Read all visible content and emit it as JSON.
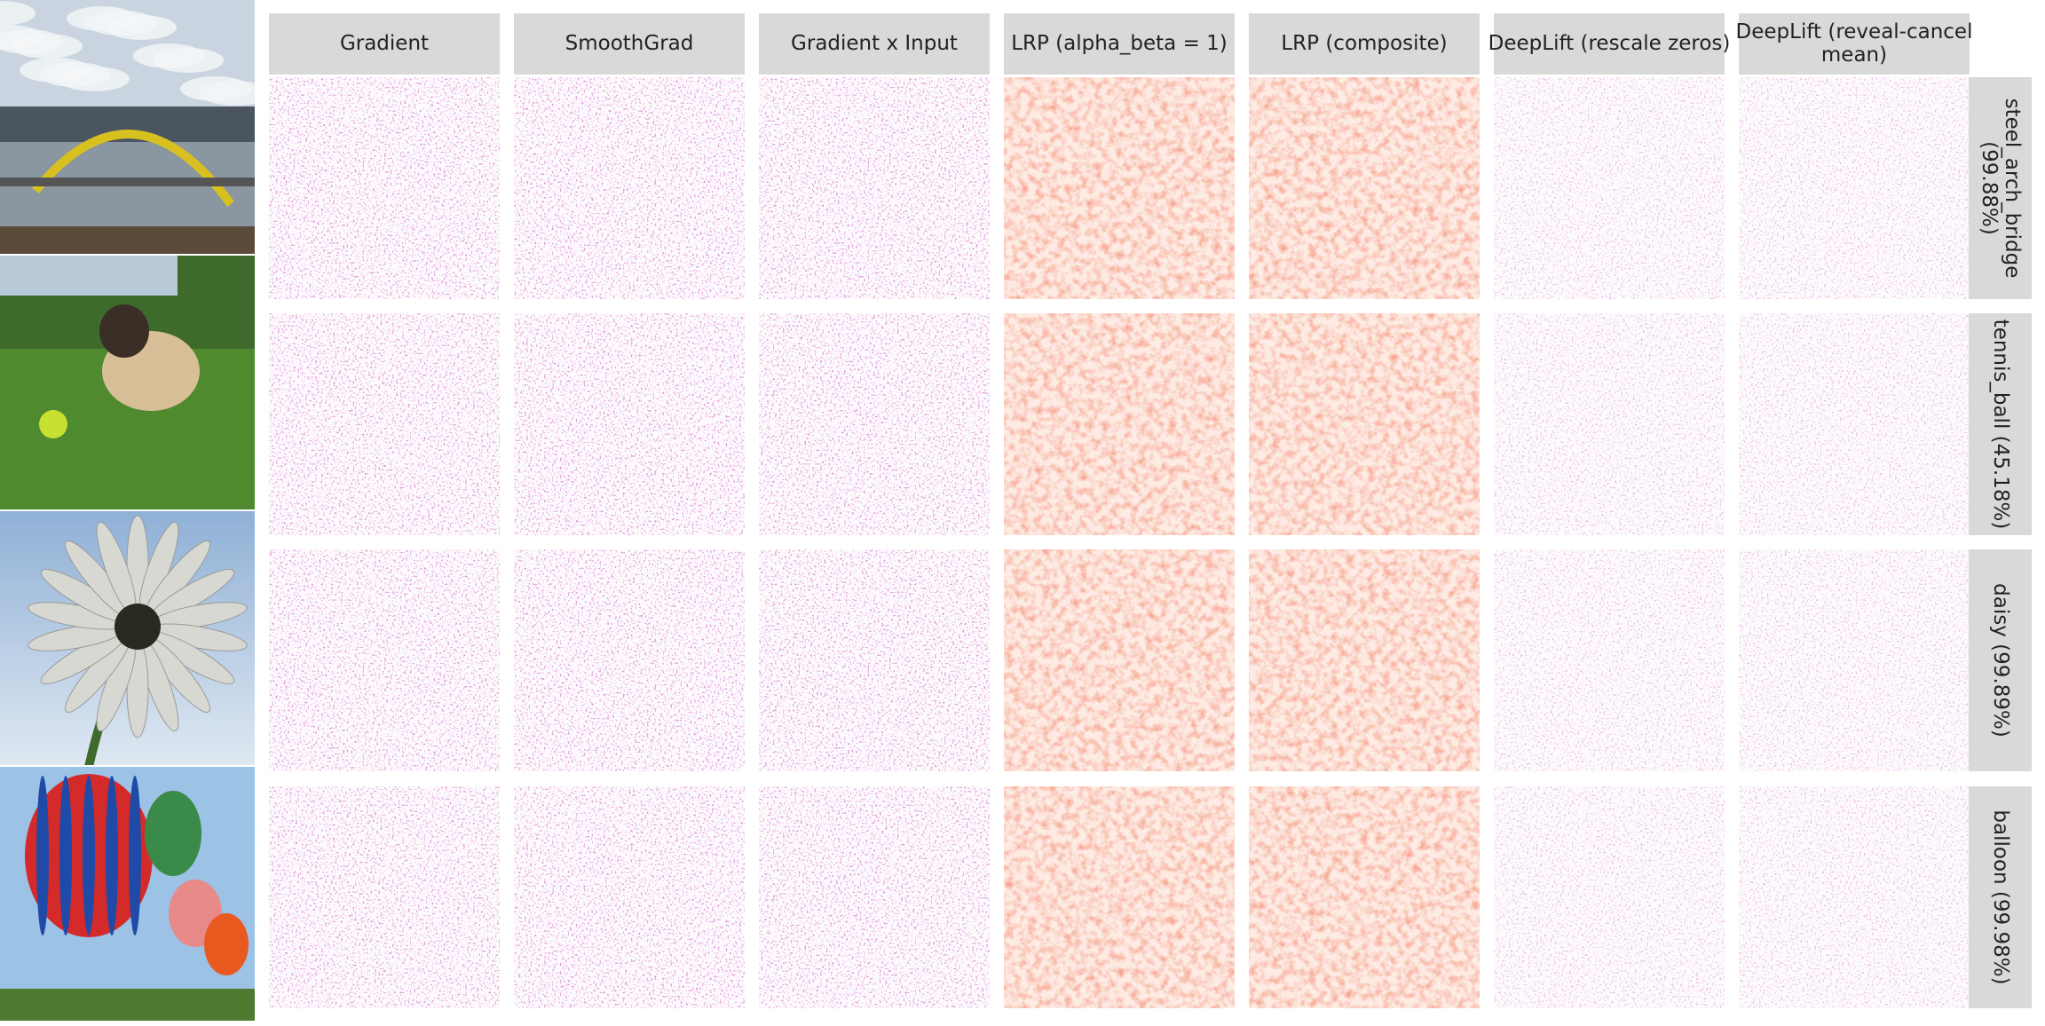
{
  "columns": [
    {
      "lines": [
        "Gradient"
      ]
    },
    {
      "lines": [
        "SmoothGrad"
      ]
    },
    {
      "lines": [
        "Gradient x Input"
      ]
    },
    {
      "lines": [
        "LRP (alpha_beta = 1)"
      ]
    },
    {
      "lines": [
        "LRP (composite)"
      ]
    },
    {
      "lines": [
        "DeepLift (rescale zeros)"
      ]
    },
    {
      "lines": [
        "DeepLift (reveal-cancel",
        "mean)"
      ]
    }
  ],
  "rows": [
    {
      "label": [
        "steel_arch_bridge",
        "(99.88%)"
      ]
    },
    {
      "label": [
        "tennis_ball (45.18%)"
      ]
    },
    {
      "label": [
        "daisy (99.89%)"
      ]
    },
    {
      "label": [
        "balloon (99.98%)"
      ]
    }
  ]
}
